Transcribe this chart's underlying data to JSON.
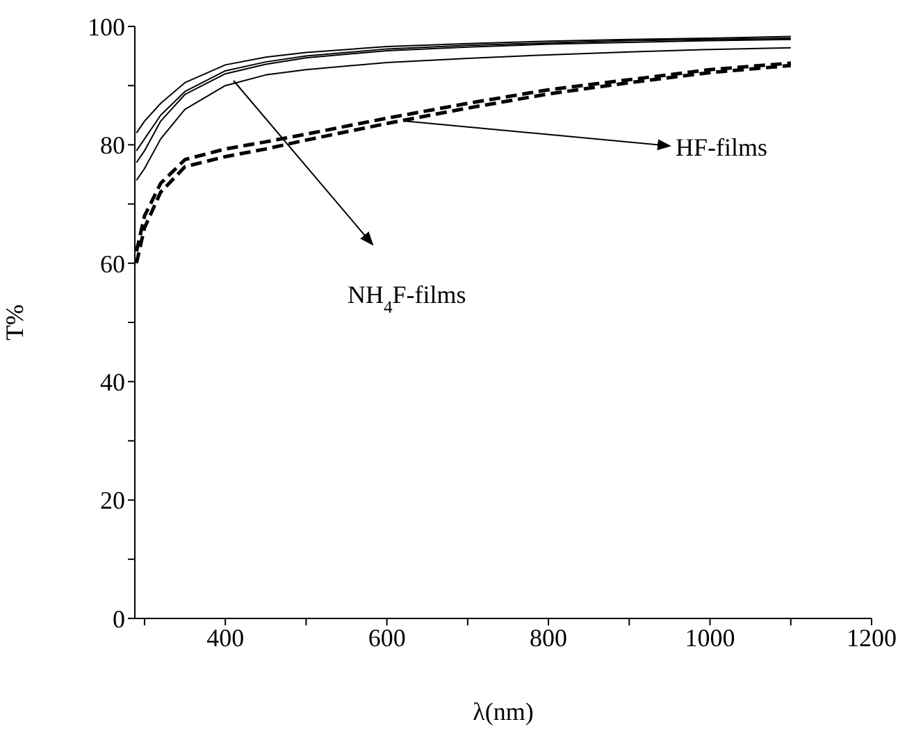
{
  "chart_data": {
    "type": "line",
    "xlabel": "λ(nm)",
    "ylabel": "T%",
    "xlim": [
      288,
      1200
    ],
    "xticks": [
      {
        "value": 300,
        "label": null
      },
      400,
      {
        "value": 500,
        "label": null
      },
      600,
      {
        "value": 700,
        "label": null
      },
      800,
      {
        "value": 900,
        "label": null
      },
      1000,
      {
        "value": 1100,
        "label": null
      },
      1200
    ],
    "ylim": [
      0,
      100
    ],
    "yticks": [
      0,
      {
        "value": 10,
        "label": null
      },
      20,
      {
        "value": 30,
        "label": null
      },
      40,
      {
        "value": 50,
        "label": null
      },
      60,
      {
        "value": 70,
        "label": null
      },
      80,
      {
        "value": 90,
        "label": null
      },
      100
    ],
    "x": [
      290,
      300,
      320,
      350,
      400,
      450,
      500,
      600,
      700,
      800,
      900,
      1000,
      1100
    ],
    "series": [
      {
        "color": "#000000",
        "line_style": "solid",
        "values": [
          82,
          84,
          87,
          90.5,
          93.5,
          94.8,
          95.6,
          96.6,
          97.1,
          97.5,
          97.8,
          98,
          98.3
        ]
      },
      {
        "color": "#000000",
        "line_style": "solid",
        "values": [
          79,
          81,
          85,
          89,
          92.5,
          94,
          95,
          96.2,
          96.8,
          97.2,
          97.6,
          97.8,
          98
        ]
      },
      {
        "color": "#000000",
        "line_style": "solid",
        "values": [
          77,
          79,
          84,
          88.5,
          92,
          93.6,
          94.7,
          95.9,
          96.5,
          97,
          97.3,
          97.6,
          97.8
        ]
      },
      {
        "color": "#000000",
        "line_style": "solid",
        "values": [
          74,
          76,
          81,
          86,
          90,
          91.8,
          92.7,
          93.9,
          94.6,
          95.2,
          95.7,
          96.1,
          96.4
        ]
      },
      {
        "color": "#000000",
        "line_style": "dashed",
        "values": [
          62,
          68,
          73.5,
          77.5,
          79.3,
          80.5,
          81.8,
          84.5,
          87,
          89.3,
          91,
          92.7,
          93.8
        ]
      },
      {
        "color": "#000000",
        "line_style": "dashed",
        "values": [
          60,
          66,
          72,
          76.3,
          78,
          79.3,
          80.8,
          83.6,
          86.2,
          88.6,
          90.5,
          92.2,
          93.4
        ]
      }
    ],
    "annotations": [
      "NH$_{4}$F-films",
      "HF-films"
    ],
    "grid": false,
    "marker": "none"
  }
}
